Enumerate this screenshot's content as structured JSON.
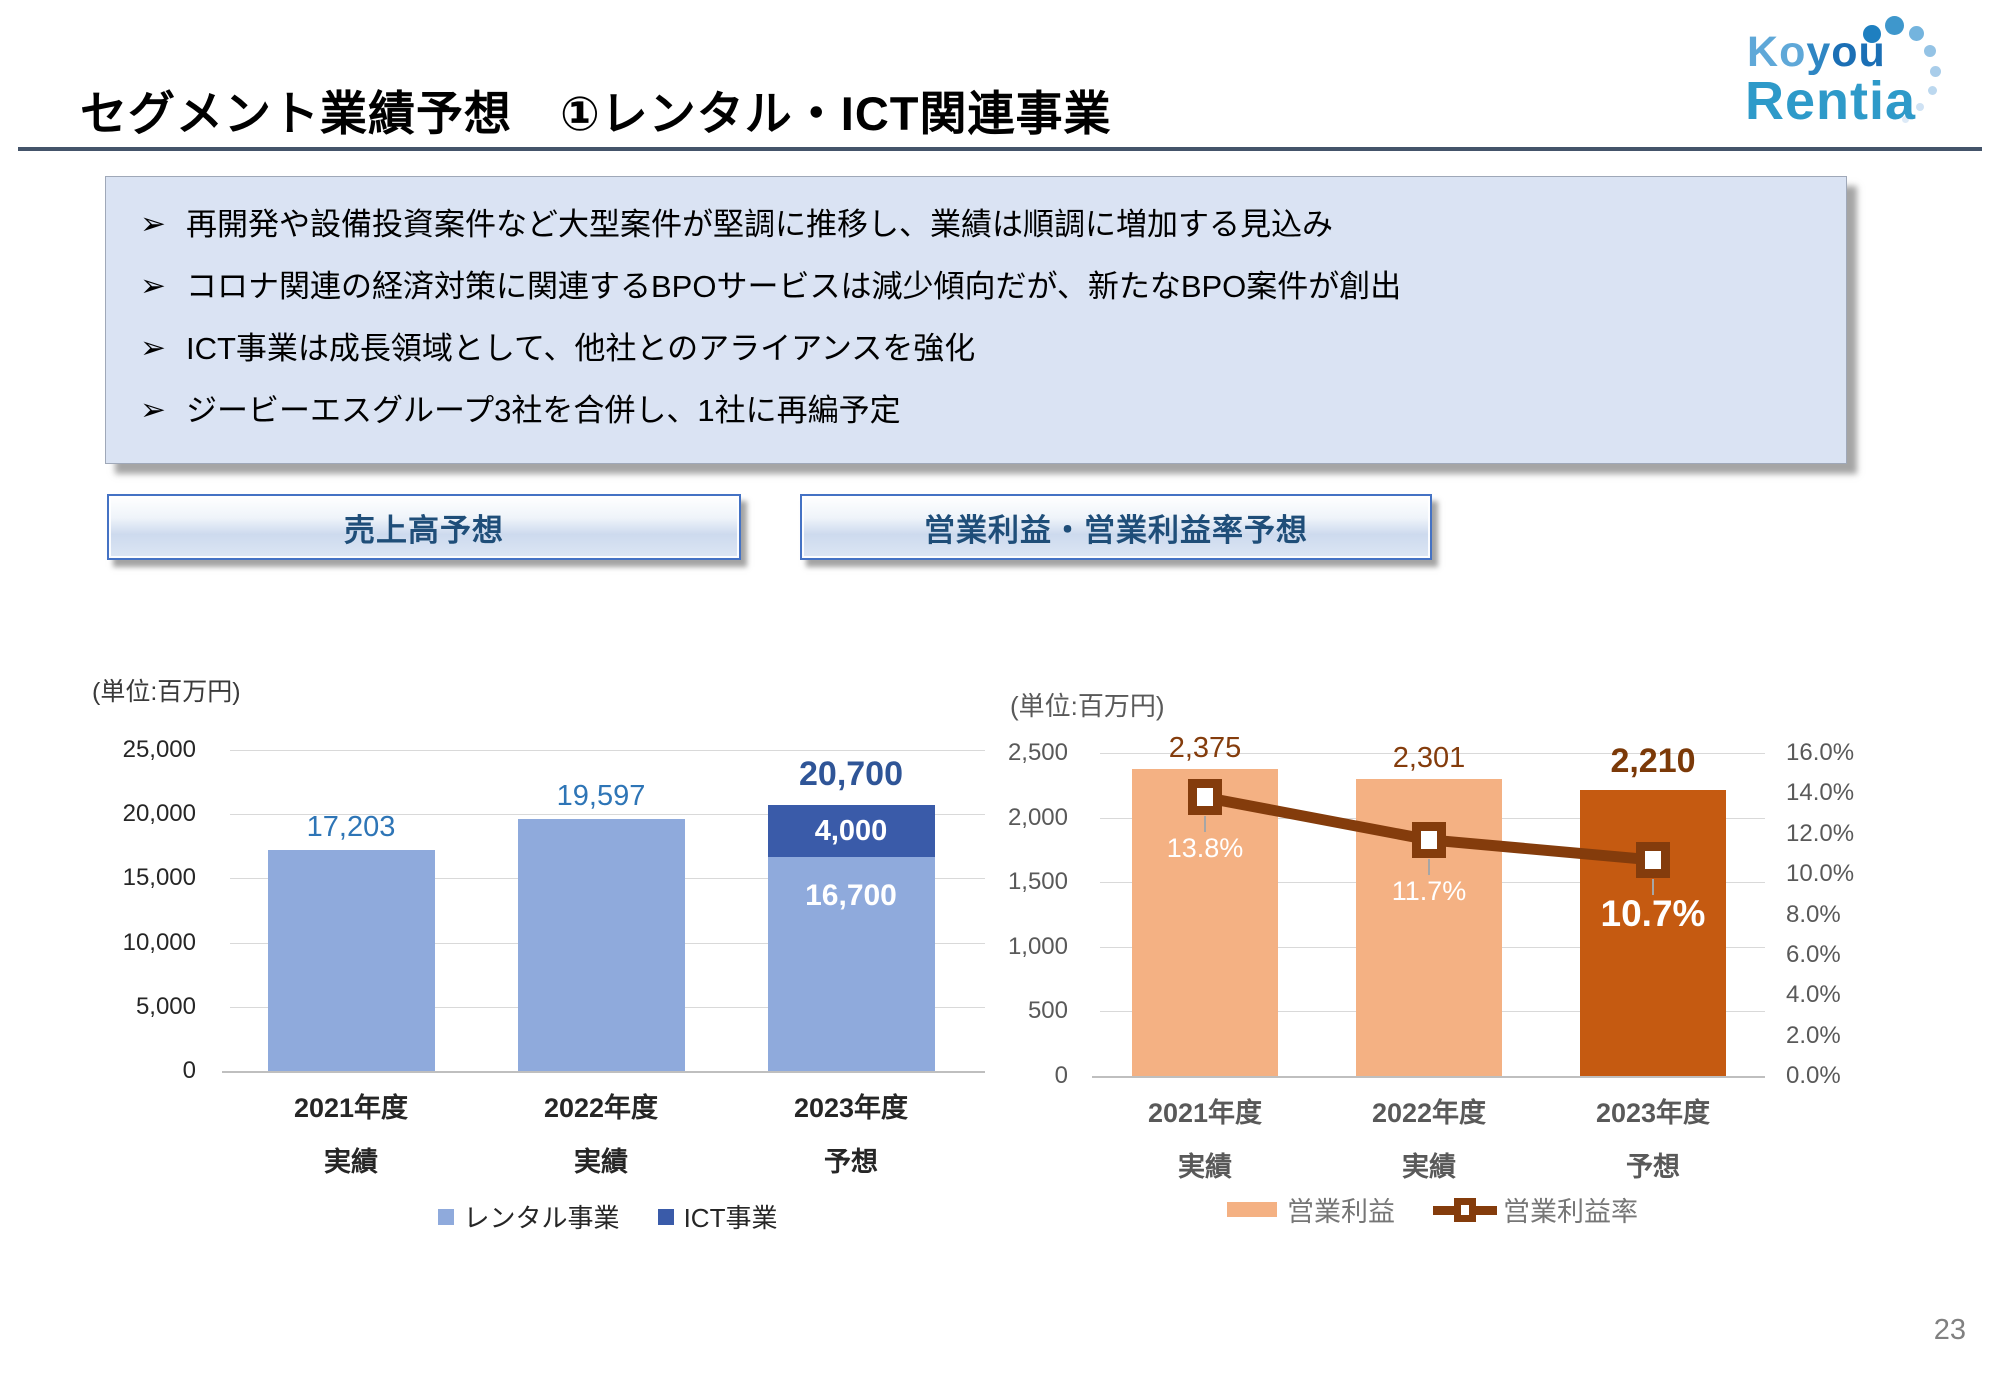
{
  "page": {
    "title": "セグメント業績予想　①レンタル・ICT関連事業",
    "page_number": "23"
  },
  "logo": {
    "word1": "Koyou",
    "word2": "Rentia"
  },
  "highlights": {
    "bullet_glyph": "➢",
    "items": [
      "再開発や設備投資案件など大型案件が堅調に推移し、業績は順調に増加する見込み",
      "コロナ関連の経済対策に関連するBPOサービスは減少傾向だが、新たなBPO案件が創出",
      "ICT事業は成長領域として、他社とのアライアンスを強化",
      "ジービーエスグループ3社を合併し、1社に再編予定"
    ]
  },
  "section_headers": {
    "sales": "売上高予想",
    "profit": "営業利益・営業利益率予想"
  },
  "chart_data": [
    {
      "id": "sales",
      "type": "bar",
      "title": "売上高予想",
      "unit_label": "(単位:百万円)",
      "categories": [
        {
          "line1": "2021年度",
          "line2": "実績"
        },
        {
          "line1": "2022年度",
          "line2": "実績"
        },
        {
          "line1": "2023年度",
          "line2": "予想"
        }
      ],
      "series": [
        {
          "name": "レンタル事業",
          "color": "#8FAADC",
          "values": [
            17203,
            19597,
            16700
          ]
        },
        {
          "name": "ICT事業",
          "color": "#3A5BA9",
          "values": [
            0,
            0,
            4000
          ]
        }
      ],
      "totals": [
        17203,
        19597,
        20700
      ],
      "total_labels": [
        "17,203",
        "19,597",
        "20,700"
      ],
      "inside_labels": [
        {
          "category": 2,
          "series": 1,
          "text": "4,000"
        },
        {
          "category": 2,
          "series": 0,
          "text": "16,700"
        }
      ],
      "ylim": [
        0,
        25000
      ],
      "y_ticks": [
        "25,000",
        "20,000",
        "15,000",
        "10,000",
        "5,000",
        "0"
      ],
      "grid": true,
      "legend_position": "bottom"
    },
    {
      "id": "profit",
      "type": "bar+line",
      "title": "営業利益・営業利益率予想",
      "unit_label": "(単位:百万円)",
      "categories": [
        {
          "line1": "2021年度",
          "line2": "実績"
        },
        {
          "line1": "2022年度",
          "line2": "実績"
        },
        {
          "line1": "2023年度",
          "line2": "予想"
        }
      ],
      "bar_series": {
        "name": "営業利益",
        "legend_color": "#F4B183",
        "colors": [
          "#F4B183",
          "#F4B183",
          "#C55A11"
        ],
        "values": [
          2375,
          2301,
          2210
        ],
        "value_labels": [
          "2,375",
          "2,301",
          "2,210"
        ]
      },
      "line_series": {
        "name": "営業利益率",
        "color": "#843C0C",
        "values": [
          13.8,
          11.7,
          10.7
        ],
        "value_labels": [
          "13.8%",
          "11.7%",
          "10.7%"
        ]
      },
      "ylim": [
        0,
        2500
      ],
      "y_ticks": [
        "2,500",
        "2,000",
        "1,500",
        "1,000",
        "500",
        "0"
      ],
      "y2lim": [
        0,
        16
      ],
      "y2_ticks": [
        "16.0%",
        "14.0%",
        "12.0%",
        "10.0%",
        "8.0%",
        "6.0%",
        "4.0%",
        "2.0%",
        "0.0%"
      ],
      "grid": true,
      "legend_position": "bottom"
    }
  ]
}
